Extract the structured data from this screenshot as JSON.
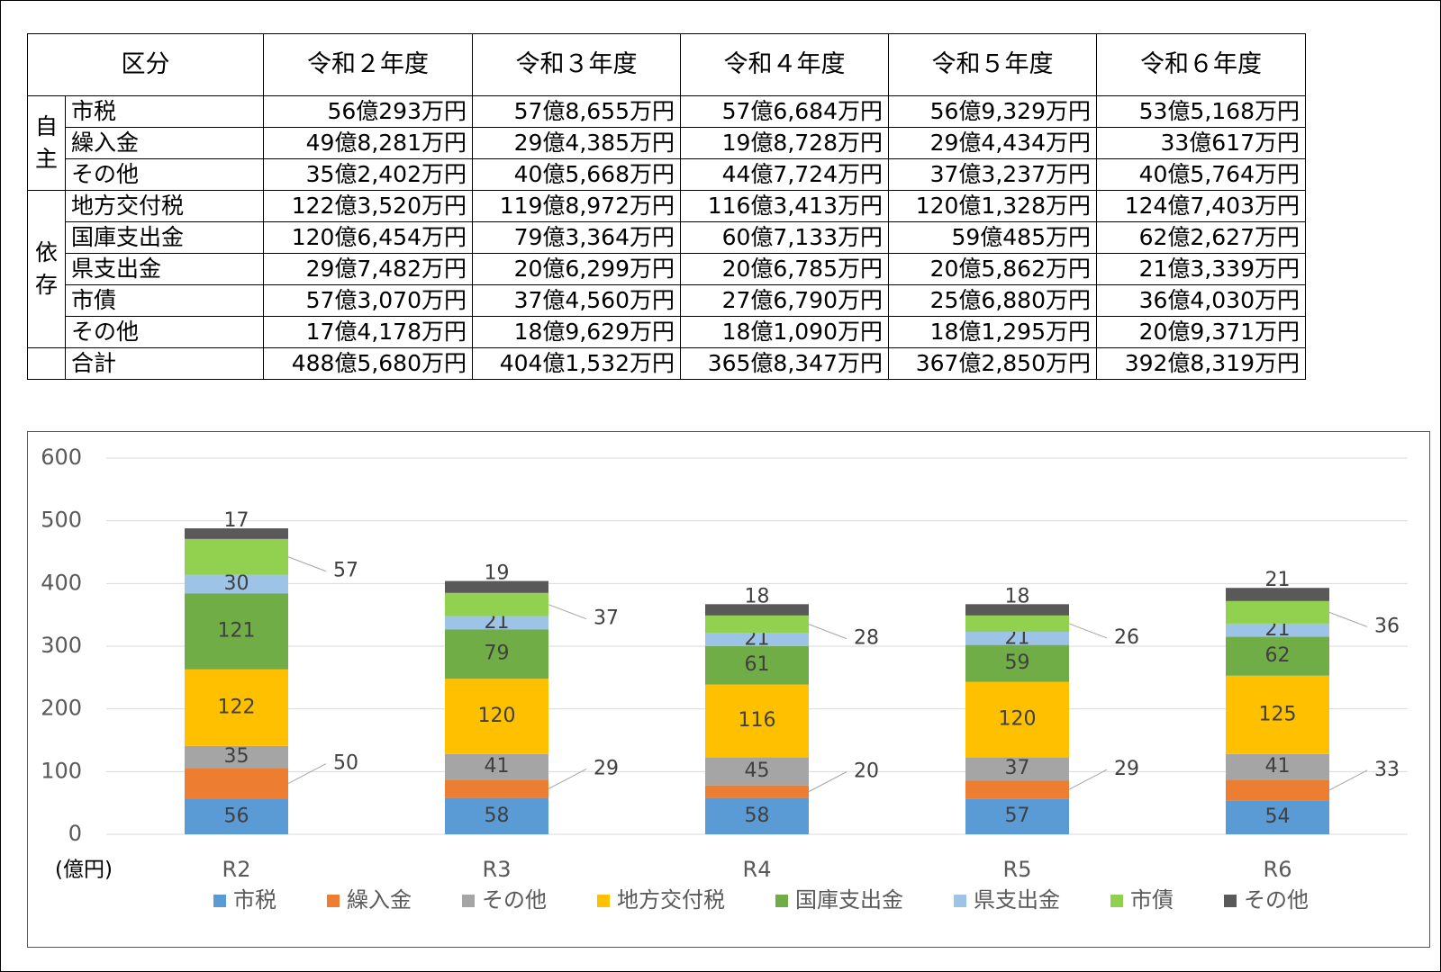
{
  "table": {
    "header": [
      "区分",
      "令和２年度",
      "令和３年度",
      "令和４年度",
      "令和５年度",
      "令和６年度"
    ],
    "groups": [
      {
        "name": "自主",
        "rows": [
          {
            "label": "市税",
            "values": [
              "56億293万円",
              "57億8,655万円",
              "57億6,684万円",
              "56億9,329万円",
              "53億5,168万円"
            ]
          },
          {
            "label": "繰入金",
            "values": [
              "49億8,281万円",
              "29億4,385万円",
              "19億8,728万円",
              "29億4,434万円",
              "33億617万円"
            ]
          },
          {
            "label": "その他",
            "values": [
              "35億2,402万円",
              "40億5,668万円",
              "44億7,724万円",
              "37億3,237万円",
              "40億5,764万円"
            ]
          }
        ]
      },
      {
        "name": "依存",
        "rows": [
          {
            "label": "地方交付税",
            "values": [
              "122億3,520万円",
              "119億8,972万円",
              "116億3,413万円",
              "120億1,328万円",
              "124億7,403万円"
            ]
          },
          {
            "label": "国庫支出金",
            "values": [
              "120億6,454万円",
              "79億3,364万円",
              "60億7,133万円",
              "59億485万円",
              "62億2,627万円"
            ]
          },
          {
            "label": "県支出金",
            "values": [
              "29億7,482万円",
              "20億6,299万円",
              "20億6,785万円",
              "20億5,862万円",
              "21億3,339万円"
            ]
          },
          {
            "label": "市債",
            "values": [
              "57億3,070万円",
              "37億4,560万円",
              "27億6,790万円",
              "25億6,880万円",
              "36億4,030万円"
            ]
          },
          {
            "label": "その他",
            "values": [
              "17億4,178万円",
              "18億9,629万円",
              "18億1,090万円",
              "18億1,295万円",
              "20億9,371万円"
            ]
          }
        ]
      }
    ],
    "total": {
      "label": "合計",
      "values": [
        "488億5,680万円",
        "404億1,532万円",
        "365億8,347万円",
        "367億2,850万円",
        "392億8,319万円"
      ]
    }
  },
  "chart_data": {
    "type": "stacked_bar",
    "y_unit_label": "(億円)",
    "categories": [
      "R2",
      "R3",
      "R4",
      "R5",
      "R6"
    ],
    "series": [
      {
        "name": "市税",
        "color": "#5b9bd5",
        "values": [
          56,
          58,
          58,
          57,
          54
        ]
      },
      {
        "name": "繰入金",
        "color": "#ed7d31",
        "values": [
          50,
          29,
          20,
          29,
          33
        ]
      },
      {
        "name": "その他",
        "color": "#a5a5a5",
        "values": [
          35,
          41,
          45,
          37,
          41
        ]
      },
      {
        "name": "地方交付税",
        "color": "#ffc000",
        "values": [
          122,
          120,
          116,
          120,
          125
        ]
      },
      {
        "name": "国庫支出金",
        "color": "#70ad47",
        "values": [
          121,
          79,
          61,
          59,
          62
        ]
      },
      {
        "name": "県支出金",
        "color": "#9dc3e6",
        "values": [
          30,
          21,
          21,
          21,
          21
        ]
      },
      {
        "name": "市債",
        "color": "#92d050",
        "values": [
          57,
          37,
          28,
          26,
          36
        ]
      },
      {
        "name": "その他",
        "color": "#595959",
        "values": [
          17,
          19,
          18,
          18,
          21
        ]
      }
    ],
    "ylim": [
      0,
      600
    ],
    "yticks": [
      0,
      100,
      200,
      300,
      400,
      500,
      600
    ],
    "grid": true,
    "legend": "bottom"
  }
}
